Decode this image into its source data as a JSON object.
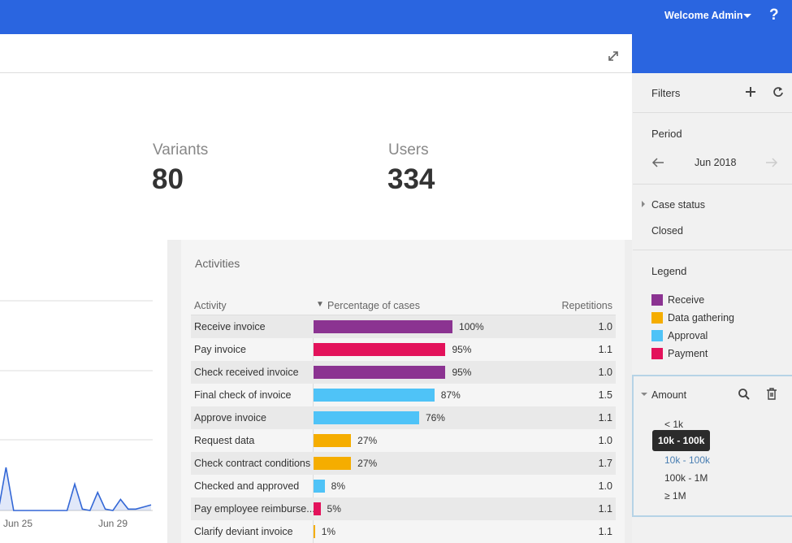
{
  "header": {
    "welcome": "Welcome Admin",
    "help": "?"
  },
  "stats": [
    {
      "label": "Variants",
      "value": "80"
    },
    {
      "label": "Users",
      "value": "334"
    }
  ],
  "timeline": {
    "x_labels": [
      "Jun 25",
      "Jun 29"
    ],
    "color": "#3367d6",
    "ylim": [
      0,
      3
    ],
    "values": [
      0,
      0.62,
      0,
      0,
      0,
      0,
      0,
      0,
      0,
      0,
      0.38,
      0.02,
      0,
      0.26,
      0.02,
      0,
      0.16,
      0.02,
      0.02,
      0.05,
      0.08
    ]
  },
  "activities": {
    "title": "Activities",
    "sort_indicator": "▼",
    "columns": [
      "Activity",
      "Percentage of cases",
      "Repetitions"
    ],
    "max_percentage": 100,
    "rows": [
      {
        "activity": "Receive invoice",
        "percentage": 100,
        "percentage_label": "100%",
        "repetitions": "1.0",
        "color": "#8b3391"
      },
      {
        "activity": "Pay invoice",
        "percentage": 95,
        "percentage_label": "95%",
        "repetitions": "1.1",
        "color": "#e3125b"
      },
      {
        "activity": "Check received invoice",
        "percentage": 95,
        "percentage_label": "95%",
        "repetitions": "1.0",
        "color": "#8b3391"
      },
      {
        "activity": "Final check of invoice",
        "percentage": 87,
        "percentage_label": "87%",
        "repetitions": "1.5",
        "color": "#4fc3f7"
      },
      {
        "activity": "Approve invoice",
        "percentage": 76,
        "percentage_label": "76%",
        "repetitions": "1.1",
        "color": "#4fc3f7"
      },
      {
        "activity": "Request data",
        "percentage": 27,
        "percentage_label": "27%",
        "repetitions": "1.0",
        "color": "#f5ad00"
      },
      {
        "activity": "Check contract conditions",
        "percentage": 27,
        "percentage_label": "27%",
        "repetitions": "1.7",
        "color": "#f5ad00"
      },
      {
        "activity": "Checked and approved",
        "percentage": 8,
        "percentage_label": "8%",
        "repetitions": "1.0",
        "color": "#4fc3f7"
      },
      {
        "activity": "Pay employee reimburse...",
        "percentage": 5,
        "percentage_label": "5%",
        "repetitions": "1.1",
        "color": "#e3125b"
      },
      {
        "activity": "Clarify deviant invoice",
        "percentage": 1,
        "percentage_label": "1%",
        "repetitions": "1.1",
        "color": "#f5ad00"
      }
    ]
  },
  "sidebar": {
    "filters": "Filters",
    "period_title": "Period",
    "period": "Jun 2018",
    "case_status": "Case status",
    "case_status_value": "Closed",
    "legend_title": "Legend",
    "legend": [
      {
        "label": "Receive",
        "color": "#8b3391"
      },
      {
        "label": "Data gathering",
        "color": "#f5ad00"
      },
      {
        "label": "Approval",
        "color": "#4fc3f7"
      },
      {
        "label": "Payment",
        "color": "#e3125b"
      }
    ],
    "amount_title": "Amount",
    "amount_tooltip": "10k - 100k",
    "amount_options": [
      "< 1k",
      "10k - 100k",
      "100k - 1M",
      "≥ 1M"
    ]
  }
}
